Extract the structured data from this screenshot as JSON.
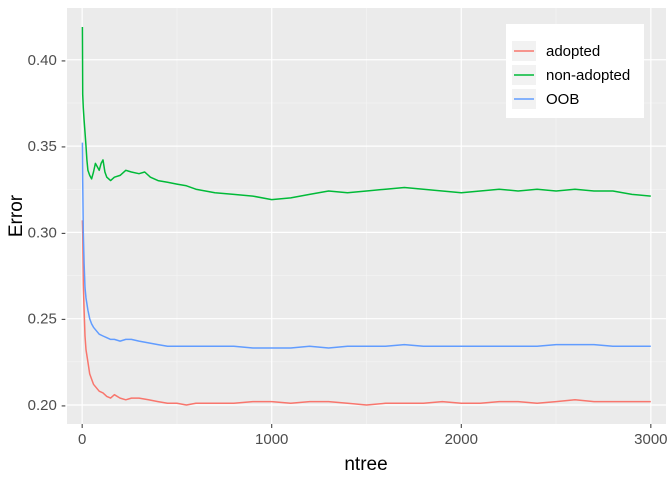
{
  "chart_data": {
    "type": "line",
    "xlabel": "ntree",
    "ylabel": "Error",
    "xlim": [
      -80,
      3080
    ],
    "ylim": [
      0.189,
      0.43
    ],
    "x_ticks": [
      0,
      1000,
      2000,
      3000
    ],
    "x_tick_labels": [
      "0",
      "1000",
      "2000",
      "3000"
    ],
    "y_ticks": [
      0.2,
      0.25,
      0.3,
      0.35,
      0.4
    ],
    "y_tick_labels": [
      "0.20 -",
      "0.25 -",
      "0.30 -",
      "0.35 -",
      "0.40 -"
    ],
    "grid": true,
    "legend_position": "top-right",
    "series": [
      {
        "name": "adopted",
        "color": "#F8766D",
        "x": [
          1,
          3,
          6,
          10,
          15,
          20,
          30,
          40,
          50,
          60,
          75,
          90,
          110,
          130,
          150,
          170,
          200,
          230,
          260,
          300,
          350,
          400,
          450,
          500,
          550,
          600,
          700,
          800,
          900,
          1000,
          1100,
          1200,
          1300,
          1400,
          1500,
          1600,
          1700,
          1800,
          1900,
          2000,
          2100,
          2200,
          2300,
          2400,
          2500,
          2600,
          2700,
          2800,
          2900,
          3000
        ],
        "y": [
          0.307,
          0.3,
          0.27,
          0.255,
          0.24,
          0.232,
          0.225,
          0.218,
          0.215,
          0.212,
          0.21,
          0.208,
          0.207,
          0.205,
          0.204,
          0.206,
          0.204,
          0.203,
          0.204,
          0.204,
          0.203,
          0.202,
          0.201,
          0.201,
          0.2,
          0.201,
          0.201,
          0.201,
          0.202,
          0.202,
          0.201,
          0.202,
          0.202,
          0.201,
          0.2,
          0.201,
          0.201,
          0.201,
          0.202,
          0.201,
          0.201,
          0.202,
          0.202,
          0.201,
          0.202,
          0.203,
          0.202,
          0.202,
          0.202,
          0.202
        ]
      },
      {
        "name": "non-adopted",
        "color": "#00BA38",
        "x": [
          1,
          3,
          6,
          10,
          15,
          20,
          25,
          30,
          40,
          50,
          60,
          70,
          80,
          90,
          100,
          110,
          120,
          130,
          150,
          170,
          200,
          230,
          260,
          300,
          330,
          360,
          400,
          450,
          500,
          550,
          600,
          700,
          800,
          900,
          1000,
          1100,
          1200,
          1300,
          1400,
          1500,
          1600,
          1700,
          1800,
          1900,
          2000,
          2100,
          2200,
          2300,
          2400,
          2500,
          2600,
          2700,
          2800,
          2900,
          3000
        ],
        "y": [
          0.419,
          0.38,
          0.372,
          0.365,
          0.358,
          0.35,
          0.342,
          0.336,
          0.333,
          0.331,
          0.335,
          0.34,
          0.338,
          0.336,
          0.34,
          0.342,
          0.335,
          0.332,
          0.33,
          0.332,
          0.333,
          0.336,
          0.335,
          0.334,
          0.335,
          0.332,
          0.33,
          0.329,
          0.328,
          0.327,
          0.325,
          0.323,
          0.322,
          0.321,
          0.319,
          0.32,
          0.322,
          0.324,
          0.323,
          0.324,
          0.325,
          0.326,
          0.325,
          0.324,
          0.323,
          0.324,
          0.325,
          0.324,
          0.325,
          0.324,
          0.325,
          0.324,
          0.324,
          0.322,
          0.321
        ]
      },
      {
        "name": "OOB",
        "color": "#619CFF",
        "x": [
          1,
          3,
          6,
          10,
          15,
          20,
          30,
          40,
          50,
          60,
          75,
          90,
          110,
          130,
          150,
          170,
          200,
          230,
          260,
          300,
          350,
          400,
          450,
          500,
          550,
          600,
          700,
          800,
          900,
          1000,
          1100,
          1200,
          1300,
          1400,
          1500,
          1600,
          1700,
          1800,
          1900,
          2000,
          2100,
          2200,
          2300,
          2400,
          2500,
          2600,
          2700,
          2800,
          2900,
          3000
        ],
        "y": [
          0.352,
          0.33,
          0.3,
          0.282,
          0.268,
          0.262,
          0.255,
          0.25,
          0.247,
          0.245,
          0.243,
          0.241,
          0.24,
          0.239,
          0.238,
          0.238,
          0.237,
          0.238,
          0.238,
          0.237,
          0.236,
          0.235,
          0.234,
          0.234,
          0.234,
          0.234,
          0.234,
          0.234,
          0.233,
          0.233,
          0.233,
          0.234,
          0.233,
          0.234,
          0.234,
          0.234,
          0.235,
          0.234,
          0.234,
          0.234,
          0.234,
          0.234,
          0.234,
          0.234,
          0.235,
          0.235,
          0.235,
          0.234,
          0.234,
          0.234
        ]
      }
    ]
  }
}
